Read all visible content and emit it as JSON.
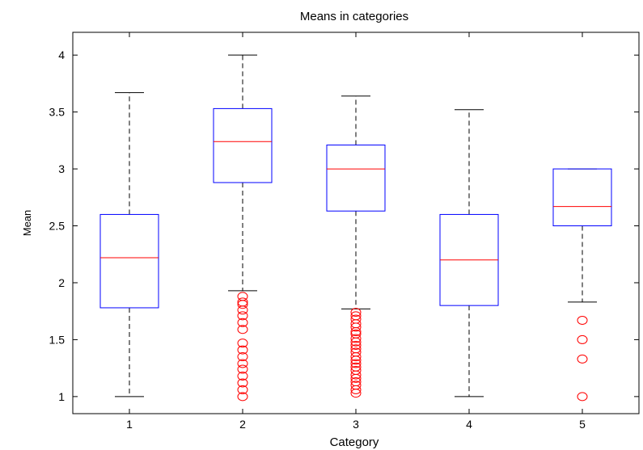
{
  "chart_data": {
    "type": "boxplot",
    "title": "Means in categories",
    "xlabel": "Category",
    "ylabel": "Mean",
    "ylim": [
      0.85,
      4.2
    ],
    "y_ticks": [
      1,
      1.5,
      2,
      2.5,
      3,
      3.5,
      4
    ],
    "y_tick_labels": [
      "1",
      "1.5",
      "2",
      "2.5",
      "3",
      "3.5",
      "4"
    ],
    "categories": [
      "1",
      "2",
      "3",
      "4",
      "5"
    ],
    "grid": false,
    "colors": {
      "box": "#0000ff",
      "median": "#ff0000",
      "whisker": "#000000",
      "outlier": "#ff0000"
    },
    "boxes": [
      {
        "category": "1",
        "whisker_low": 1.0,
        "q1": 1.78,
        "median": 2.22,
        "q3": 2.6,
        "whisker_high": 3.67,
        "outliers": []
      },
      {
        "category": "2",
        "whisker_low": 1.93,
        "q1": 2.88,
        "median": 3.24,
        "q3": 3.53,
        "whisker_high": 4.0,
        "outliers": [
          1.88,
          1.83,
          1.81,
          1.76,
          1.71,
          1.65,
          1.59,
          1.47,
          1.41,
          1.35,
          1.29,
          1.24,
          1.18,
          1.12,
          1.06,
          1.0
        ]
      },
      {
        "category": "3",
        "whisker_low": 1.77,
        "q1": 2.63,
        "median": 3.0,
        "q3": 3.21,
        "whisker_high": 3.64,
        "outliers": [
          1.74,
          1.71,
          1.68,
          1.64,
          1.61,
          1.57,
          1.55,
          1.51,
          1.48,
          1.45,
          1.42,
          1.39,
          1.35,
          1.32,
          1.29,
          1.26,
          1.23,
          1.19,
          1.16,
          1.13,
          1.1,
          1.06,
          1.03
        ]
      },
      {
        "category": "4",
        "whisker_low": 1.0,
        "q1": 1.8,
        "median": 2.2,
        "q3": 2.6,
        "whisker_high": 3.52,
        "outliers": []
      },
      {
        "category": "5",
        "whisker_low": 1.83,
        "q1": 2.5,
        "median": 2.67,
        "q3": 3.0,
        "whisker_high": 3.0,
        "outliers": [
          1.67,
          1.5,
          1.33,
          1.0
        ]
      }
    ]
  }
}
